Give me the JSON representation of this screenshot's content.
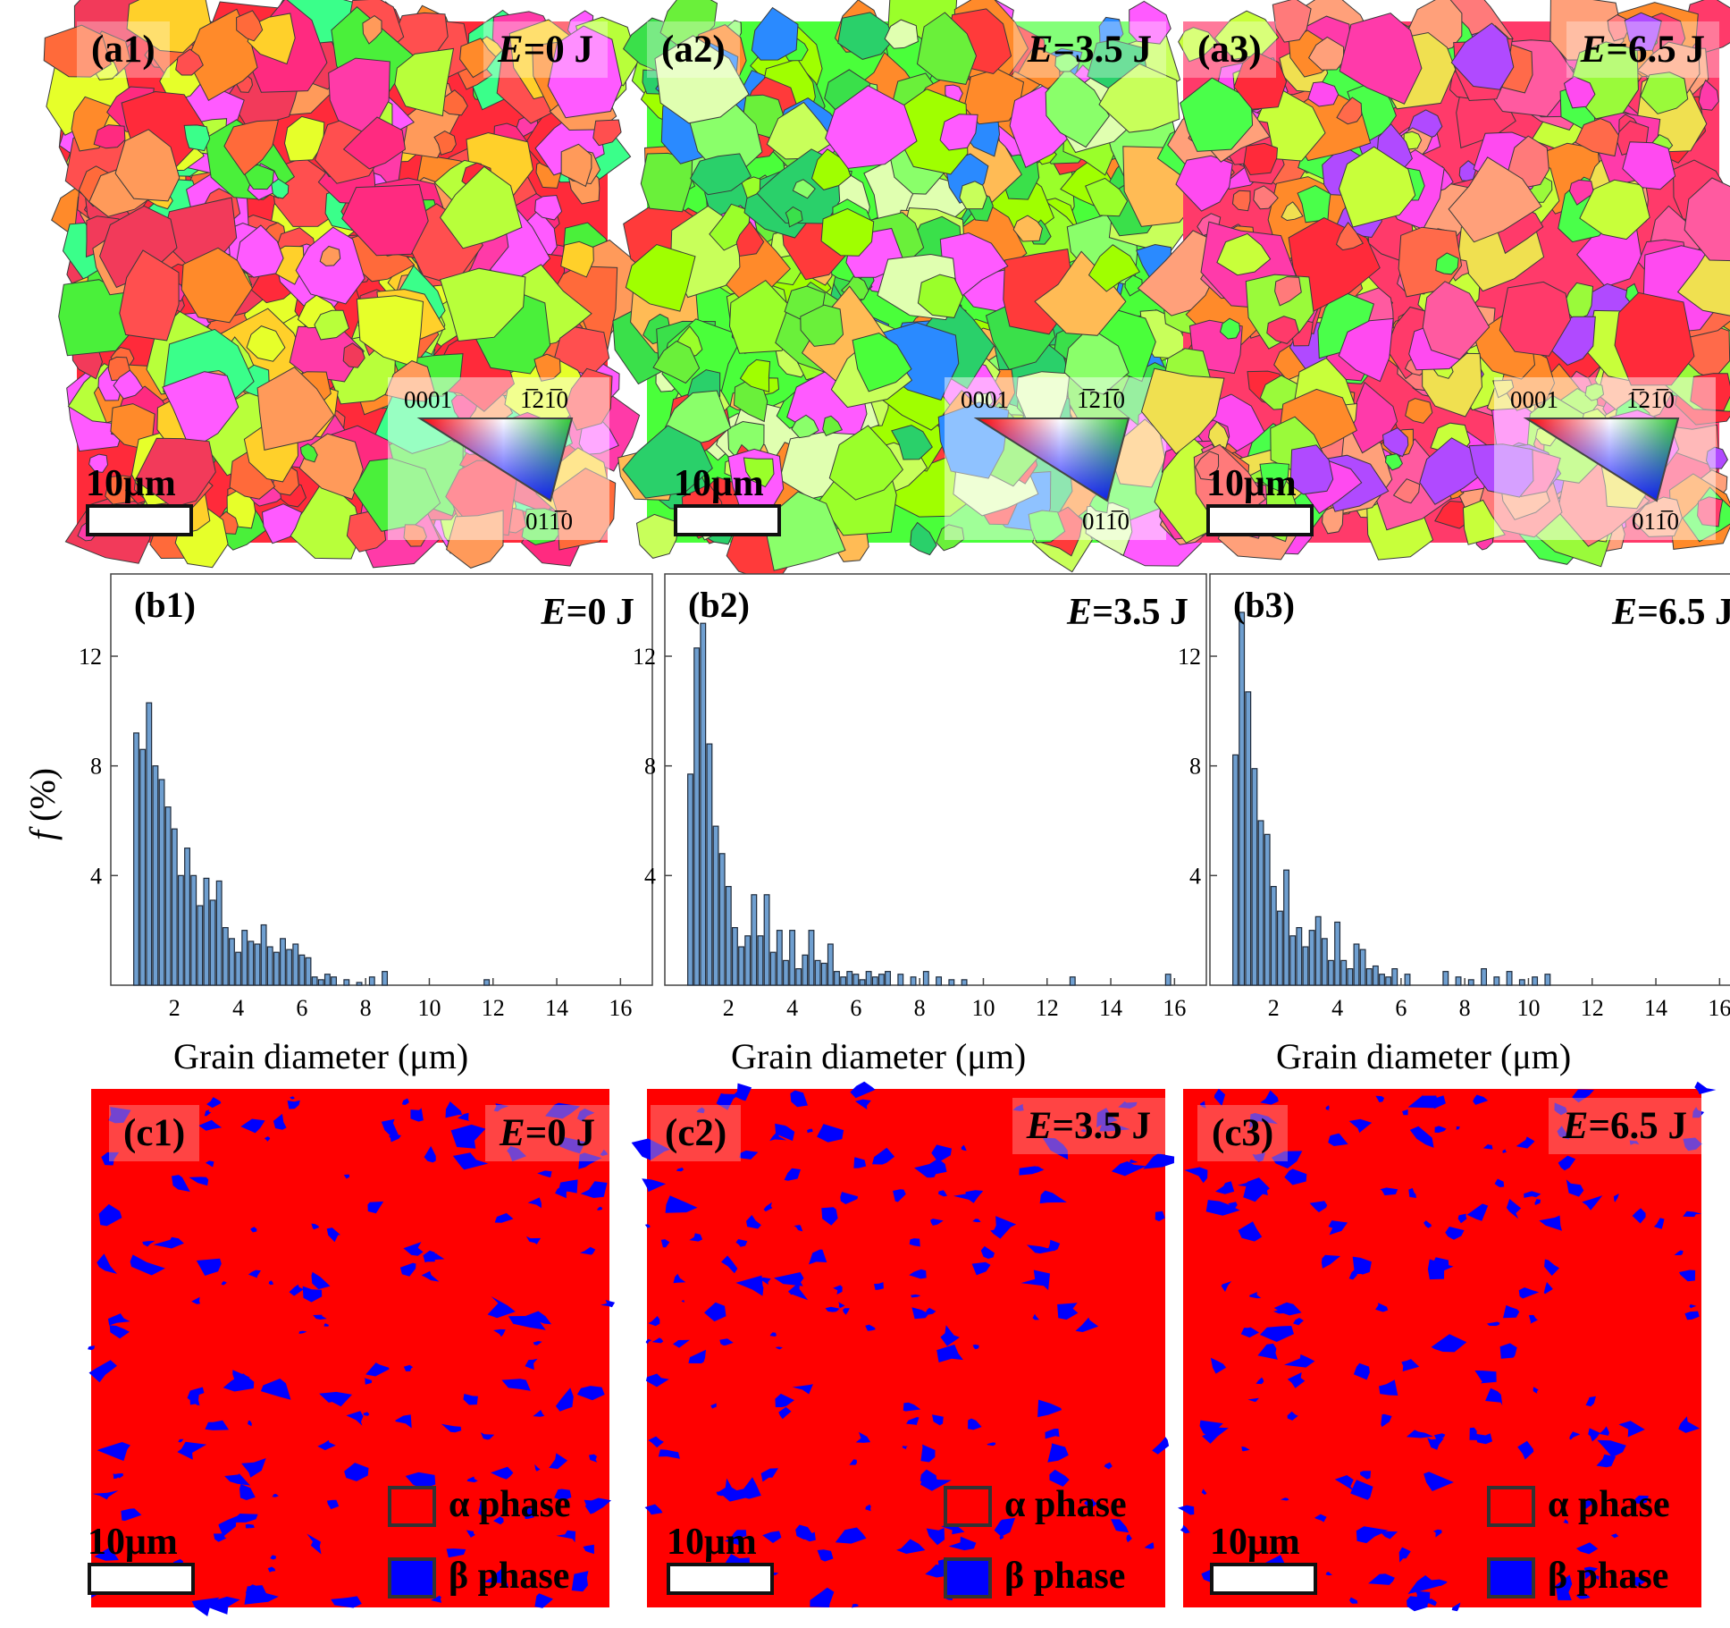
{
  "figure": {
    "scale_bar_text": "10μm",
    "x_axis_label": "Grain diameter (μm)",
    "y_axis_label_var": "f",
    "y_axis_label_unit": " (%)"
  },
  "ipf_legend": {
    "corner_0001": "0001",
    "corner_1210": "1̅21̅0",
    "corner_0110": "011̅0"
  },
  "phase_legend": {
    "alpha": "α phase",
    "beta": "β phase",
    "alpha_color": "#ff0000",
    "beta_color": "#0000ff"
  },
  "ebsd_maps": [
    {
      "id": "(a1)",
      "energy_var": "E",
      "energy_value": "=0 J"
    },
    {
      "id": "(a2)",
      "energy_var": "E",
      "energy_value": "=3.5 J"
    },
    {
      "id": "(a3)",
      "energy_var": "E",
      "energy_value": "=6.5 J"
    }
  ],
  "phase_maps": [
    {
      "id": "(c1)",
      "energy_var": "E",
      "energy_value": "=0 J"
    },
    {
      "id": "(c2)",
      "energy_var": "E",
      "energy_value": "=3.5 J"
    },
    {
      "id": "(c3)",
      "energy_var": "E",
      "energy_value": "=6.5 J"
    }
  ],
  "chart_data": [
    {
      "type": "bar",
      "id": "(b1)",
      "title_var": "E",
      "title_value": "=0 J",
      "xlabel": "Grain diameter (μm)",
      "ylabel": "f (%)",
      "xlim": [
        0,
        17
      ],
      "ylim": [
        0,
        15
      ],
      "xticks": [
        2,
        4,
        6,
        8,
        10,
        12,
        14,
        16
      ],
      "yticks": [
        4,
        8,
        12
      ],
      "bar_width": 0.16,
      "x": [
        0.8,
        1.0,
        1.2,
        1.4,
        1.6,
        1.8,
        2.0,
        2.2,
        2.4,
        2.6,
        2.8,
        3.0,
        3.2,
        3.4,
        3.6,
        3.8,
        4.0,
        4.2,
        4.4,
        4.6,
        4.8,
        5.0,
        5.2,
        5.4,
        5.6,
        5.8,
        6.0,
        6.2,
        6.4,
        6.6,
        6.8,
        7.0,
        7.4,
        7.8,
        8.2,
        8.6,
        11.8
      ],
      "values": [
        9.2,
        8.6,
        10.3,
        8.0,
        7.5,
        6.5,
        5.7,
        4.0,
        5.0,
        4.0,
        2.9,
        3.9,
        3.1,
        3.8,
        2.1,
        1.7,
        1.2,
        2.0,
        1.6,
        1.5,
        2.2,
        1.4,
        1.2,
        1.7,
        1.3,
        1.5,
        1.1,
        1.0,
        0.3,
        0.2,
        0.4,
        0.3,
        0.2,
        0.1,
        0.3,
        0.5,
        0.2
      ]
    },
    {
      "type": "bar",
      "id": "(b2)",
      "title_var": "E",
      "title_value": "=3.5 J",
      "xlabel": "Grain diameter (μm)",
      "ylabel": "f (%)",
      "xlim": [
        0,
        17
      ],
      "ylim": [
        0,
        15
      ],
      "xticks": [
        2,
        4,
        6,
        8,
        10,
        12,
        14,
        16
      ],
      "yticks": [
        4,
        8,
        12
      ],
      "bar_width": 0.16,
      "x": [
        0.8,
        1.0,
        1.2,
        1.4,
        1.6,
        1.8,
        2.0,
        2.2,
        2.4,
        2.6,
        2.8,
        3.0,
        3.2,
        3.4,
        3.6,
        3.8,
        4.0,
        4.2,
        4.4,
        4.6,
        4.8,
        5.0,
        5.2,
        5.4,
        5.6,
        5.8,
        6.0,
        6.2,
        6.4,
        6.6,
        6.8,
        7.0,
        7.4,
        7.8,
        8.2,
        8.6,
        9.0,
        9.4,
        12.8,
        15.8
      ],
      "values": [
        7.7,
        12.3,
        13.2,
        8.8,
        5.8,
        4.8,
        3.6,
        2.1,
        1.4,
        1.8,
        3.3,
        1.8,
        3.3,
        1.2,
        2.0,
        0.9,
        2.0,
        0.6,
        1.1,
        2.0,
        0.9,
        0.8,
        1.5,
        0.5,
        0.3,
        0.5,
        0.4,
        0.2,
        0.5,
        0.3,
        0.4,
        0.5,
        0.4,
        0.3,
        0.5,
        0.3,
        0.2,
        0.2,
        0.3,
        0.4
      ]
    },
    {
      "type": "bar",
      "id": "(b3)",
      "title_var": "E",
      "title_value": "=6.5 J",
      "xlabel": "Grain diameter (μm)",
      "ylabel": "f (%)",
      "xlim": [
        0,
        17
      ],
      "ylim": [
        0,
        15
      ],
      "xticks": [
        2,
        4,
        6,
        8,
        10,
        12,
        14,
        16
      ],
      "yticks": [
        4,
        8,
        12
      ],
      "bar_width": 0.16,
      "x": [
        0.8,
        1.0,
        1.2,
        1.4,
        1.6,
        1.8,
        2.0,
        2.2,
        2.4,
        2.6,
        2.8,
        3.0,
        3.2,
        3.4,
        3.6,
        3.8,
        4.0,
        4.2,
        4.4,
        4.6,
        4.8,
        5.0,
        5.2,
        5.4,
        5.6,
        5.8,
        6.2,
        7.4,
        7.8,
        8.2,
        8.6,
        9.0,
        9.4,
        9.8,
        10.2,
        10.6
      ],
      "values": [
        8.4,
        13.6,
        10.7,
        7.9,
        6.0,
        5.5,
        3.6,
        2.7,
        4.2,
        1.8,
        2.1,
        1.4,
        2.0,
        2.5,
        1.7,
        0.9,
        2.3,
        0.9,
        0.6,
        1.5,
        1.3,
        0.6,
        0.7,
        0.4,
        0.3,
        0.6,
        0.4,
        0.5,
        0.3,
        0.2,
        0.6,
        0.3,
        0.5,
        0.2,
        0.3,
        0.4
      ]
    }
  ]
}
